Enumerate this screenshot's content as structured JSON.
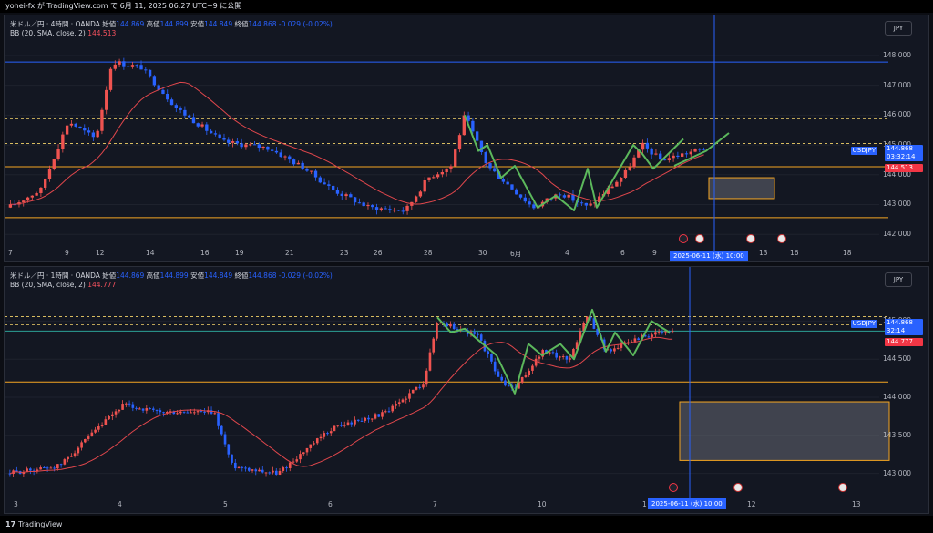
{
  "header": {
    "text": "yohei-fx が TradingView.com で 6月 11, 2025 06:27 UTC+9 に公開"
  },
  "panes": [
    {
      "legend_title": "米ドル／円 · 4時間 · OANDA",
      "ohlc": {
        "o_label": "始値",
        "o": "144.869",
        "h_label": "高値",
        "h": "144.899",
        "l_label": "安値",
        "l": "144.849",
        "c_label": "終値",
        "c": "144.868",
        "chg": "-0.029 (-0.02%)"
      },
      "bb_label": "BB (20, SMA, close, 2)",
      "bb_value": "144.513",
      "currency": "JPY",
      "price_ticks": [
        "148.000",
        "147.000",
        "146.000",
        "145.000",
        "144.000",
        "143.000",
        "142.000"
      ],
      "price_ticks_values": [
        148,
        147,
        146,
        145,
        144,
        143,
        142
      ],
      "y_range": [
        141.7,
        148.55
      ],
      "symbol_tag": "USDJPY",
      "last_price": "144.868",
      "countdown": "03:32:14",
      "bb_tag": "144.513",
      "x_labels": [
        "7",
        "9",
        "12",
        "14",
        "16",
        "19",
        "21",
        "23",
        "26",
        "28",
        "30",
        "6月",
        "4",
        "6",
        "9",
        "13",
        "16",
        "18"
      ],
      "date_box": "2025-06-11 (水)  10:00",
      "blue_line": 147.78,
      "dashed_lines": [
        145.88,
        145.05
      ],
      "orange_lines": [
        144.27,
        142.56
      ],
      "box": [
        143.9,
        143.2
      ]
    },
    {
      "legend_title": "米ドル／円 · 1時間 · OANDA",
      "ohlc": {
        "o_label": "始値",
        "o": "144.869",
        "h_label": "高値",
        "h": "144.899",
        "l_label": "安値",
        "l": "144.849",
        "c_label": "終値",
        "c": "144.868",
        "chg": "-0.029 (-0.02%)"
      },
      "bb_label": "BB (20, SMA, close, 2)",
      "bb_value": "144.777",
      "currency": "JPY",
      "price_ticks": [
        "145.000",
        "144.500",
        "144.000",
        "143.500",
        "143.000"
      ],
      "price_ticks_values": [
        145,
        144.5,
        144,
        143.5,
        143
      ],
      "y_range": [
        142.72,
        145.4
      ],
      "symbol_tag": "USDJPY",
      "last_price": "144.868",
      "countdown": "32:14",
      "bb_tag": "144.777",
      "x_labels": [
        "3",
        "4",
        "5",
        "6",
        "7",
        "10",
        "1",
        "12",
        "13"
      ],
      "date_box": "2025-06-11 (水)  10:00",
      "dashed_lines": [
        145.06,
        144.95
      ],
      "cyan_line": 144.87,
      "orange_lines": [
        144.2
      ],
      "box": [
        143.94,
        143.17
      ]
    }
  ],
  "colors": {
    "up": "#ef5350",
    "down": "#2962ff",
    "bb": "#e0474c",
    "wave": "#5cb85c",
    "orange": "#f5a623",
    "blue_line": "#2962ff"
  },
  "footer": {
    "logo": "𝟭𝟳",
    "brand": "TradingView"
  }
}
